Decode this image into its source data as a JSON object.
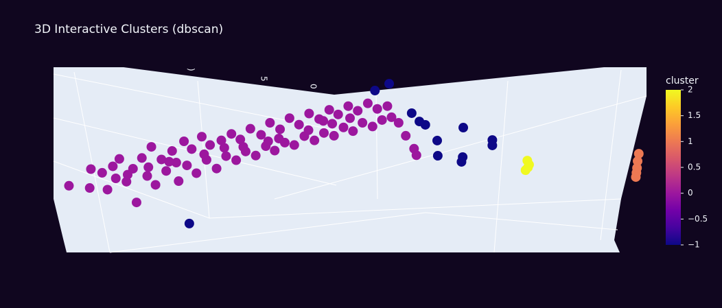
{
  "chart_data": {
    "type": "scatter3d",
    "title": "3D Interactive Clusters (dbscan)",
    "scene_tick_labels": [
      ")",
      "5",
      "0"
    ],
    "xlim": [
      0,
      100
    ],
    "ylim": [
      0,
      100
    ],
    "colorbar": {
      "title": "cluster",
      "clim": [
        -1,
        2
      ],
      "ticks": [
        {
          "value": -1,
          "label": "−1"
        },
        {
          "value": -0.5,
          "label": "−0.5"
        },
        0,
        0.5,
        1,
        1.5,
        2
      ],
      "colorscale": [
        "#0d0887",
        "#46039f",
        "#7201a8",
        "#9c179e",
        "#bd3786",
        "#d8576b",
        "#ed7953",
        "#fb9f3a",
        "#fdca26",
        "#f0f921"
      ]
    },
    "series": [
      {
        "cluster": 0,
        "x": [
          2.6,
          6.3,
          6.1,
          8.2,
          9.1,
          10.0,
          10.5,
          11.1,
          12.3,
          13.4,
          14.0,
          14.9,
          15.8,
          16.5,
          17.2,
          18.2,
          19.0,
          20.0,
          21.1,
          22.0,
          22.5,
          23.3,
          24.1,
          25.0,
          25.8,
          26.4,
          27.5,
          28.3,
          29.1,
          30.0,
          30.8,
          31.5,
          32.4,
          33.2,
          34.1,
          35.0,
          35.8,
          36.5,
          37.3,
          38.2,
          39.0,
          39.8,
          40.6,
          41.4,
          42.3,
          43.1,
          44.0,
          44.8,
          45.6,
          46.5,
          47.3,
          48.0,
          48.9,
          49.7,
          50.5,
          51.3,
          52.1,
          53.0,
          53.8,
          54.6,
          55.4,
          56.3,
          57.0,
          58.2,
          59.4,
          60.8,
          61.2,
          16.0,
          20.7,
          25.4,
          32.0,
          38.0,
          43.0,
          47.0,
          50.0,
          45.5,
          36.2,
          28.8,
          19.5,
          12.5
        ],
        "y": [
          36.0,
          45.0,
          34.8,
          43.0,
          33.9,
          46.5,
          40.0,
          50.5,
          38.2,
          45.2,
          27.0,
          51.0,
          41.3,
          57.0,
          36.5,
          50.2,
          44.0,
          54.8,
          38.5,
          60.0,
          47.0,
          55.8,
          42.8,
          62.5,
          50.0,
          58.0,
          45.3,
          60.5,
          52.0,
          64.0,
          49.8,
          61.0,
          54.5,
          66.8,
          52.3,
          63.5,
          57.4,
          70.0,
          55.0,
          66.5,
          59.3,
          72.5,
          58.0,
          69.0,
          62.8,
          75.0,
          60.5,
          72.0,
          64.5,
          77.0,
          63.0,
          74.5,
          67.5,
          79.0,
          65.5,
          76.5,
          70.0,
          80.5,
          68.0,
          77.5,
          71.5,
          79.0,
          73.0,
          70.0,
          63.0,
          56.0,
          52.5,
          46.0,
          48.5,
          53.0,
          57.0,
          61.5,
          66.0,
          69.5,
          72.5,
          71.0,
          60.0,
          56.5,
          49.0,
          42.0
        ]
      },
      {
        "cluster": -1,
        "x": [
          54.2,
          56.6,
          60.4,
          61.7,
          62.7,
          69.1,
          64.7,
          74.0,
          74.0,
          69.0,
          68.8,
          64.8,
          22.9
        ],
        "y": [
          87.4,
          91.1,
          75.2,
          70.7,
          68.9,
          67.4,
          60.4,
          60.7,
          57.8,
          51.5,
          48.9,
          52.2,
          15.6
        ]
      },
      {
        "cluster": 2,
        "x": [
          79.9,
          80.2,
          79.6,
          80.0
        ],
        "y": [
          49.6,
          47.4,
          44.4,
          45.9
        ]
      },
      {
        "cluster": 1,
        "x": [
          98.7,
          98.5,
          98.4,
          98.3,
          98.2
        ],
        "y": [
          53.3,
          49.3,
          45.6,
          43.0,
          40.7
        ]
      }
    ]
  }
}
